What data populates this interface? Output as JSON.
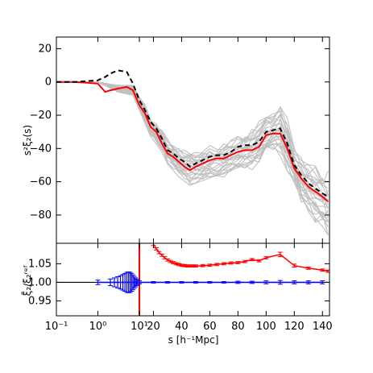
{
  "chart_data": [
    {
      "type": "line",
      "panel": "upper",
      "ylabel": "s^2 ξ_2(s)",
      "ylim": [
        -97,
        27
      ],
      "yticks": [
        "20",
        "0",
        "−20",
        "−40",
        "−60",
        "−80"
      ],
      "ytick_values": [
        20,
        0,
        -20,
        -40,
        -60,
        -80
      ],
      "grid": false,
      "legend": "none",
      "colors": {
        "red": "#ff0000",
        "black": "#000000",
        "mocks": "#c0c0c0"
      },
      "series": [
        {
          "style": "red-solid",
          "x": [
            "0.1",
            "0.3",
            "1",
            "1.5",
            "2",
            "3",
            "5",
            "7",
            "10",
            "14",
            "18",
            "22",
            "26",
            "30",
            "34",
            "38",
            "42",
            "46",
            "50",
            "55",
            "60",
            "65",
            "70",
            "75",
            "80",
            "85",
            "90",
            "95",
            "100",
            "105",
            "110",
            "115",
            "120",
            "125",
            "130",
            "135",
            "140",
            "144"
          ],
          "values": [
            0,
            0,
            -1,
            -6,
            -5,
            -4,
            -3,
            -5,
            -14,
            -19,
            -27,
            -30,
            -37,
            -43,
            -45,
            -48,
            -51,
            -53,
            -51,
            -49,
            -47,
            -46,
            -46,
            -44,
            -42,
            -41,
            -41,
            -39,
            -32,
            -31,
            -31,
            -40,
            -52,
            -58,
            -63,
            -66,
            -69,
            -72
          ]
        },
        {
          "style": "black-dashed",
          "x": [
            "0.1",
            "0.3",
            "1",
            "1.5",
            "2",
            "3",
            "5",
            "7",
            "10",
            "14",
            "18",
            "22",
            "26",
            "30",
            "34",
            "38",
            "42",
            "46",
            "50",
            "55",
            "60",
            "65",
            "70",
            "75",
            "80",
            "85",
            "90",
            "95",
            "100",
            "105",
            "110",
            "115",
            "120",
            "125",
            "130",
            "135",
            "140",
            "144"
          ],
          "values": [
            0,
            0,
            1,
            3,
            5,
            7,
            6,
            -1,
            -11,
            -17,
            -24,
            -28,
            -34,
            -41,
            -43,
            -46,
            -48,
            -51,
            -49,
            -47,
            -45,
            -44,
            -44,
            -42,
            -39,
            -38,
            -38,
            -36,
            -30,
            -29,
            -28,
            -37,
            -50,
            -56,
            -61,
            -64,
            -67,
            -69
          ]
        }
      ],
      "mock_band": {
        "description_points_s": [
          10,
          14,
          18,
          22,
          26,
          30,
          34,
          38,
          42,
          46,
          50,
          55,
          60,
          65,
          70,
          75,
          80,
          85,
          90,
          95,
          100,
          105,
          110,
          115,
          120,
          125,
          130,
          135,
          140,
          144
        ],
        "upper": [
          -8,
          -13,
          -20,
          -24,
          -28,
          -33,
          -36,
          -38,
          -40,
          -40,
          -40,
          -39,
          -37,
          -36,
          -35,
          -33,
          -31,
          -29,
          -26,
          -22,
          -18,
          -16,
          -9,
          -20,
          -34,
          -42,
          -46,
          -48,
          -50,
          -50
        ],
        "lower": [
          -18,
          -26,
          -34,
          -38,
          -43,
          -50,
          -54,
          -58,
          -61,
          -64,
          -63,
          -62,
          -61,
          -60,
          -59,
          -57,
          -56,
          -55,
          -55,
          -52,
          -47,
          -44,
          -48,
          -58,
          -68,
          -76,
          -82,
          -88,
          -92,
          -97
        ]
      }
    },
    {
      "type": "line",
      "panel": "lower",
      "ylabel": "ξ̄_2 / ξ_2^ref",
      "xlabel": "s [h⁻¹ Mpc]",
      "ylim": [
        0.91,
        1.105
      ],
      "yticks": [
        "1.05",
        "1.00",
        "0.95"
      ],
      "ytick_values": [
        1.05,
        1.0,
        0.95
      ],
      "xticks": [
        "10⁻¹",
        "10⁰",
        "10¹",
        "20",
        "40",
        "60",
        "80",
        "100",
        "120",
        "140"
      ],
      "xaxis_note": "logarithmic from 0.1 to 10, linear from 10 to 145",
      "vertical_line": {
        "x": "10",
        "color": "#ff0000"
      },
      "series": [
        {
          "style": "red-errorbar",
          "x": [
            "20",
            "22",
            "24",
            "26",
            "28",
            "30",
            "32",
            "34",
            "36",
            "38",
            "40",
            "42",
            "44",
            "46",
            "48",
            "50",
            "55",
            "60",
            "65",
            "70",
            "75",
            "80",
            "85",
            "90",
            "95",
            "100",
            "110",
            "120",
            "130",
            "140",
            "144"
          ],
          "values": [
            1.102,
            1.09,
            1.08,
            1.073,
            1.066,
            1.06,
            1.056,
            1.053,
            1.05,
            1.048,
            1.046,
            1.045,
            1.044,
            1.044,
            1.044,
            1.044,
            1.045,
            1.046,
            1.048,
            1.05,
            1.052,
            1.053,
            1.056,
            1.061,
            1.058,
            1.066,
            1.075,
            1.045,
            1.038,
            1.033,
            1.03
          ],
          "errors": [
            0.003,
            0.003,
            0.003,
            0.003,
            0.003,
            0.003,
            0.003,
            0.003,
            0.003,
            0.003,
            0.003,
            0.003,
            0.003,
            0.003,
            0.003,
            0.003,
            0.003,
            0.003,
            0.003,
            0.003,
            0.003,
            0.003,
            0.003,
            0.003,
            0.003,
            0.003,
            0.006,
            0.004,
            0.003,
            0.003,
            0.003
          ]
        },
        {
          "style": "blue-errorbar",
          "x": [
            "1",
            "2",
            "2.5",
            "3",
            "3.5",
            "4",
            "4.5",
            "5",
            "5.5",
            "6",
            "6.5",
            "7",
            "7.5",
            "8",
            "8.5",
            "9",
            "10",
            "20",
            "30",
            "40",
            "50",
            "60",
            "70",
            "80",
            "90",
            "100",
            "110",
            "120",
            "130",
            "140"
          ],
          "values": [
            1.0,
            1.0,
            1.0,
            1.0,
            1.0,
            1.0,
            1.0,
            1.0,
            1.0,
            1.0,
            1.0,
            1.0,
            1.0,
            1.0,
            1.0,
            1.0,
            1.0,
            1.0,
            1.0,
            1.0,
            1.0,
            1.0,
            1.0,
            1.0,
            1.0,
            1.0,
            1.0,
            1.0,
            1.0,
            1.0
          ],
          "errors": [
            0.006,
            0.009,
            0.012,
            0.015,
            0.018,
            0.021,
            0.024,
            0.027,
            0.028,
            0.027,
            0.024,
            0.02,
            0.016,
            0.012,
            0.009,
            0.006,
            0.004,
            0.002,
            0.002,
            0.002,
            0.002,
            0.002,
            0.002,
            0.003,
            0.003,
            0.004,
            0.005,
            0.004,
            0.004,
            0.004
          ]
        }
      ]
    }
  ],
  "labels": {
    "upper_ylabel": "s²ξ₂(s)",
    "lower_ylabel": "ξ̄₂/ξ₂ʳᵉᶠ",
    "xlabel": "s [h⁻¹Mpc]"
  }
}
